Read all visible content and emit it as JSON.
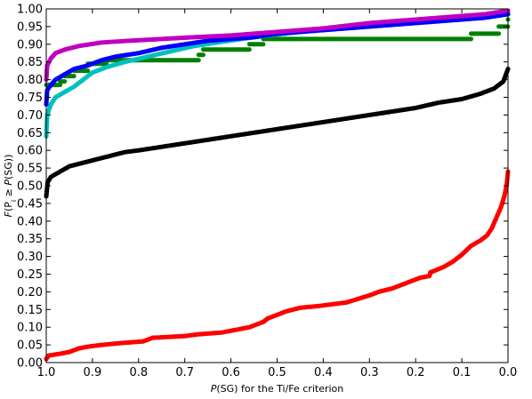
{
  "chart_data": {
    "type": "scatter",
    "xlabel_italic": "P",
    "xlabel_rest": "(SG) for the Ti/Fe criterion",
    "ylabel_f": "F",
    "ylabel_mid": "(P",
    "ylabel_sub": "i",
    "ylabel_ge": " ≥ ",
    "ylabel_p": "P",
    "ylabel_end": "(SG))",
    "xlim": [
      1.0,
      0.0
    ],
    "ylim": [
      0.0,
      1.0
    ],
    "x_ticks": [
      1.0,
      0.9,
      0.8,
      0.7,
      0.6,
      0.5,
      0.4,
      0.3,
      0.2,
      0.1,
      0.0
    ],
    "x_tick_labels": [
      "1.0",
      "0.9",
      "0.8",
      "0.7",
      "0.6",
      "0.5",
      "0.4",
      "0.3",
      "0.2",
      "0.1",
      "0.0"
    ],
    "y_ticks": [
      0.0,
      0.05,
      0.1,
      0.15,
      0.2,
      0.25,
      0.3,
      0.35,
      0.4,
      0.45,
      0.5,
      0.55,
      0.6,
      0.65,
      0.7,
      0.75,
      0.8,
      0.85,
      0.9,
      0.95,
      1.0
    ],
    "y_tick_labels": [
      "0.00",
      "0.05",
      "0.10",
      "0.15",
      "0.20",
      "0.25",
      "0.30",
      "0.35",
      "0.40",
      "0.45",
      "0.50",
      "0.55",
      "0.60",
      "0.65",
      "0.70",
      "0.75",
      "0.80",
      "0.85",
      "0.90",
      "0.95",
      "1.00"
    ],
    "grid": false,
    "series": [
      {
        "color": "#ff0000",
        "style": "dense",
        "points": [
          [
            1.0,
            0.01
          ],
          [
            0.995,
            0.02
          ],
          [
            0.97,
            0.025
          ],
          [
            0.95,
            0.03
          ],
          [
            0.93,
            0.04
          ],
          [
            0.91,
            0.045
          ],
          [
            0.88,
            0.05
          ],
          [
            0.84,
            0.055
          ],
          [
            0.79,
            0.06
          ],
          [
            0.77,
            0.07
          ],
          [
            0.7,
            0.075
          ],
          [
            0.67,
            0.08
          ],
          [
            0.62,
            0.085
          ],
          [
            0.58,
            0.095
          ],
          [
            0.56,
            0.1
          ],
          [
            0.53,
            0.115
          ],
          [
            0.52,
            0.125
          ],
          [
            0.5,
            0.135
          ],
          [
            0.48,
            0.145
          ],
          [
            0.45,
            0.155
          ],
          [
            0.41,
            0.16
          ],
          [
            0.35,
            0.17
          ],
          [
            0.3,
            0.19
          ],
          [
            0.28,
            0.2
          ],
          [
            0.25,
            0.21
          ],
          [
            0.22,
            0.225
          ],
          [
            0.19,
            0.24
          ],
          [
            0.17,
            0.245
          ],
          [
            0.168,
            0.255
          ],
          [
            0.14,
            0.27
          ],
          [
            0.12,
            0.285
          ],
          [
            0.1,
            0.305
          ],
          [
            0.08,
            0.33
          ],
          [
            0.06,
            0.345
          ],
          [
            0.045,
            0.36
          ],
          [
            0.035,
            0.38
          ],
          [
            0.025,
            0.41
          ],
          [
            0.015,
            0.44
          ],
          [
            0.008,
            0.47
          ],
          [
            0.003,
            0.5
          ],
          [
            0.0,
            0.54
          ]
        ]
      },
      {
        "color": "#000000",
        "style": "dense",
        "points": [
          [
            1.0,
            0.47
          ],
          [
            0.997,
            0.51
          ],
          [
            0.99,
            0.525
          ],
          [
            0.97,
            0.54
          ],
          [
            0.95,
            0.555
          ],
          [
            0.92,
            0.565
          ],
          [
            0.89,
            0.575
          ],
          [
            0.86,
            0.585
          ],
          [
            0.83,
            0.595
          ],
          [
            0.8,
            0.6
          ],
          [
            0.75,
            0.61
          ],
          [
            0.7,
            0.62
          ],
          [
            0.65,
            0.63
          ],
          [
            0.6,
            0.64
          ],
          [
            0.55,
            0.65
          ],
          [
            0.5,
            0.66
          ],
          [
            0.45,
            0.67
          ],
          [
            0.4,
            0.68
          ],
          [
            0.35,
            0.69
          ],
          [
            0.3,
            0.7
          ],
          [
            0.25,
            0.71
          ],
          [
            0.2,
            0.72
          ],
          [
            0.15,
            0.735
          ],
          [
            0.1,
            0.745
          ],
          [
            0.06,
            0.76
          ],
          [
            0.03,
            0.775
          ],
          [
            0.01,
            0.795
          ],
          [
            0.0,
            0.83
          ]
        ]
      },
      {
        "color": "#008000",
        "style": "steps",
        "points": [
          [
            1.0,
            0.785
          ],
          [
            0.97,
            0.795
          ],
          [
            0.96,
            0.81
          ],
          [
            0.94,
            0.825
          ],
          [
            0.91,
            0.845
          ],
          [
            0.87,
            0.855
          ],
          [
            0.67,
            0.87
          ],
          [
            0.66,
            0.885
          ],
          [
            0.56,
            0.9
          ],
          [
            0.53,
            0.915
          ],
          [
            0.08,
            0.93
          ],
          [
            0.02,
            0.95
          ],
          [
            0.0,
            0.97
          ]
        ]
      },
      {
        "color": "#00c0c0",
        "style": "dense",
        "points": [
          [
            1.0,
            0.64
          ],
          [
            0.998,
            0.7
          ],
          [
            0.99,
            0.73
          ],
          [
            0.98,
            0.75
          ],
          [
            0.96,
            0.765
          ],
          [
            0.94,
            0.78
          ],
          [
            0.92,
            0.8
          ],
          [
            0.9,
            0.82
          ],
          [
            0.87,
            0.835
          ],
          [
            0.83,
            0.85
          ],
          [
            0.78,
            0.865
          ],
          [
            0.73,
            0.88
          ],
          [
            0.68,
            0.895
          ],
          [
            0.63,
            0.905
          ],
          [
            0.55,
            0.92
          ],
          [
            0.45,
            0.935
          ],
          [
            0.35,
            0.95
          ],
          [
            0.25,
            0.965
          ],
          [
            0.15,
            0.97
          ],
          [
            0.1,
            0.975
          ],
          [
            0.05,
            0.98
          ],
          [
            0.0,
            0.99
          ]
        ]
      },
      {
        "color": "#0000ff",
        "style": "dense",
        "points": [
          [
            1.0,
            0.73
          ],
          [
            0.998,
            0.77
          ],
          [
            0.99,
            0.785
          ],
          [
            0.98,
            0.8
          ],
          [
            0.96,
            0.815
          ],
          [
            0.94,
            0.83
          ],
          [
            0.91,
            0.84
          ],
          [
            0.88,
            0.855
          ],
          [
            0.85,
            0.865
          ],
          [
            0.8,
            0.875
          ],
          [
            0.75,
            0.89
          ],
          [
            0.7,
            0.9
          ],
          [
            0.65,
            0.91
          ],
          [
            0.6,
            0.915
          ],
          [
            0.55,
            0.92
          ],
          [
            0.5,
            0.93
          ],
          [
            0.4,
            0.94
          ],
          [
            0.3,
            0.95
          ],
          [
            0.2,
            0.96
          ],
          [
            0.1,
            0.97
          ],
          [
            0.05,
            0.975
          ],
          [
            0.0,
            0.985
          ]
        ]
      },
      {
        "color": "#c000c0",
        "style": "dense",
        "points": [
          [
            1.0,
            0.8
          ],
          [
            0.998,
            0.84
          ],
          [
            0.99,
            0.86
          ],
          [
            0.98,
            0.875
          ],
          [
            0.96,
            0.885
          ],
          [
            0.93,
            0.895
          ],
          [
            0.88,
            0.905
          ],
          [
            0.82,
            0.91
          ],
          [
            0.75,
            0.915
          ],
          [
            0.68,
            0.92
          ],
          [
            0.6,
            0.925
          ],
          [
            0.5,
            0.935
          ],
          [
            0.4,
            0.945
          ],
          [
            0.3,
            0.96
          ],
          [
            0.2,
            0.97
          ],
          [
            0.1,
            0.98
          ],
          [
            0.05,
            0.985
          ],
          [
            0.0,
            0.995
          ]
        ]
      }
    ]
  }
}
